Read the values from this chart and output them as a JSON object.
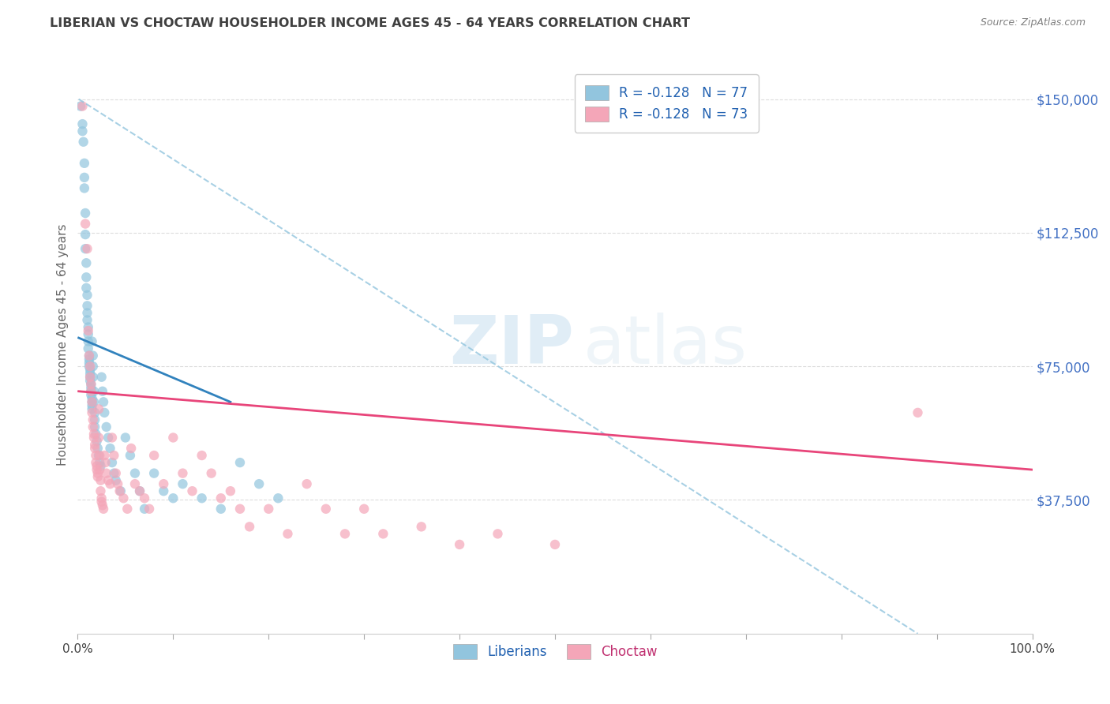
{
  "title": "LIBERIAN VS CHOCTAW HOUSEHOLDER INCOME AGES 45 - 64 YEARS CORRELATION CHART",
  "source": "Source: ZipAtlas.com",
  "ylabel": "Householder Income Ages 45 - 64 years",
  "ytick_labels": [
    "$37,500",
    "$75,000",
    "$112,500",
    "$150,000"
  ],
  "ytick_values": [
    37500,
    75000,
    112500,
    150000
  ],
  "ylim": [
    0,
    162000
  ],
  "xlim": [
    0.0,
    1.0
  ],
  "watermark_zip": "ZIP",
  "watermark_atlas": "atlas",
  "legend_liberian": "R = -0.128   N = 77",
  "legend_choctaw": "R = -0.128   N = 73",
  "liberian_color": "#92c5de",
  "choctaw_color": "#f4a6b8",
  "liberian_line_color": "#3182bd",
  "choctaw_line_color": "#e8457a",
  "dashed_line_color": "#92c5de",
  "liberian_scatter_x": [
    0.003,
    0.005,
    0.005,
    0.006,
    0.007,
    0.007,
    0.007,
    0.008,
    0.008,
    0.008,
    0.009,
    0.009,
    0.009,
    0.01,
    0.01,
    0.01,
    0.01,
    0.011,
    0.011,
    0.011,
    0.011,
    0.012,
    0.012,
    0.012,
    0.012,
    0.013,
    0.013,
    0.013,
    0.013,
    0.014,
    0.014,
    0.014,
    0.014,
    0.015,
    0.015,
    0.015,
    0.015,
    0.015,
    0.016,
    0.016,
    0.016,
    0.017,
    0.017,
    0.018,
    0.018,
    0.018,
    0.019,
    0.02,
    0.021,
    0.022,
    0.023,
    0.024,
    0.025,
    0.026,
    0.027,
    0.028,
    0.03,
    0.032,
    0.034,
    0.036,
    0.038,
    0.04,
    0.045,
    0.05,
    0.055,
    0.06,
    0.065,
    0.07,
    0.08,
    0.09,
    0.1,
    0.11,
    0.13,
    0.15,
    0.17,
    0.19,
    0.21
  ],
  "liberian_scatter_y": [
    148000,
    143000,
    141000,
    138000,
    132000,
    128000,
    125000,
    118000,
    112000,
    108000,
    104000,
    100000,
    97000,
    95000,
    92000,
    90000,
    88000,
    86000,
    84000,
    82000,
    80000,
    78000,
    77000,
    76000,
    75000,
    74000,
    73000,
    72000,
    71000,
    70000,
    69000,
    68000,
    67000,
    66000,
    65000,
    64000,
    63000,
    82000,
    78000,
    75000,
    72000,
    68000,
    65000,
    62000,
    60000,
    58000,
    56000,
    54000,
    52000,
    50000,
    48000,
    47000,
    72000,
    68000,
    65000,
    62000,
    58000,
    55000,
    52000,
    48000,
    45000,
    43000,
    40000,
    55000,
    50000,
    45000,
    40000,
    35000,
    45000,
    40000,
    38000,
    42000,
    38000,
    35000,
    48000,
    42000,
    38000
  ],
  "choctaw_scatter_x": [
    0.005,
    0.008,
    0.01,
    0.011,
    0.012,
    0.013,
    0.013,
    0.014,
    0.014,
    0.015,
    0.015,
    0.016,
    0.016,
    0.017,
    0.017,
    0.018,
    0.018,
    0.019,
    0.019,
    0.02,
    0.02,
    0.021,
    0.021,
    0.022,
    0.022,
    0.023,
    0.023,
    0.024,
    0.024,
    0.025,
    0.025,
    0.026,
    0.027,
    0.028,
    0.029,
    0.03,
    0.032,
    0.034,
    0.036,
    0.038,
    0.04,
    0.042,
    0.044,
    0.048,
    0.052,
    0.056,
    0.06,
    0.065,
    0.07,
    0.075,
    0.08,
    0.09,
    0.1,
    0.11,
    0.12,
    0.13,
    0.14,
    0.15,
    0.16,
    0.17,
    0.18,
    0.2,
    0.22,
    0.24,
    0.26,
    0.28,
    0.3,
    0.32,
    0.36,
    0.4,
    0.44,
    0.5,
    0.88
  ],
  "choctaw_scatter_y": [
    148000,
    115000,
    108000,
    85000,
    78000,
    75000,
    72000,
    70000,
    68000,
    65000,
    62000,
    60000,
    58000,
    56000,
    55000,
    53000,
    52000,
    50000,
    48000,
    47000,
    46000,
    45000,
    44000,
    63000,
    55000,
    50000,
    46000,
    43000,
    40000,
    38000,
    37000,
    36000,
    35000,
    50000,
    48000,
    45000,
    43000,
    42000,
    55000,
    50000,
    45000,
    42000,
    40000,
    38000,
    35000,
    52000,
    42000,
    40000,
    38000,
    35000,
    50000,
    42000,
    55000,
    45000,
    40000,
    50000,
    45000,
    38000,
    40000,
    35000,
    30000,
    35000,
    28000,
    42000,
    35000,
    28000,
    35000,
    28000,
    30000,
    25000,
    28000,
    25000,
    62000
  ],
  "liberian_trend_x": [
    0.001,
    0.16
  ],
  "liberian_trend_y": [
    83000,
    65000
  ],
  "choctaw_trend_x": [
    0.001,
    1.0
  ],
  "choctaw_trend_y": [
    68000,
    46000
  ],
  "dashed_trend_x": [
    0.001,
    0.88
  ],
  "dashed_trend_y": [
    150000,
    0
  ],
  "background_color": "#ffffff",
  "grid_color": "#d9d9d9",
  "title_color": "#404040",
  "source_color": "#808080",
  "ytick_color": "#4472c4",
  "xtick_color": "#404040"
}
